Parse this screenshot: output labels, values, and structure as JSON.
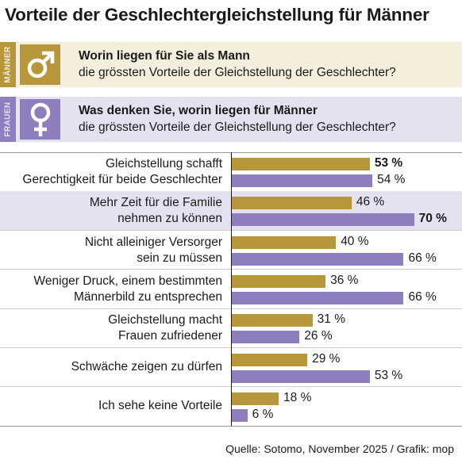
{
  "title": "Vorteile der Geschlechtergleichstellung für Männer",
  "legend": {
    "men": {
      "tag": "MÄNNER",
      "icon": "male-symbol-icon",
      "color": "#b8973a",
      "bg": "#f4efdd",
      "question_bold": "Worin liegen für Sie als Mann",
      "question_rest": "die grössten Vorteile der Gleichstellung der Geschlechter?"
    },
    "women": {
      "tag": "FRAUEN",
      "icon": "female-symbol-icon",
      "color": "#8f7ebd",
      "bg": "#e4e1f0",
      "question_bold": "Was denken Sie, worin liegen für Männer",
      "question_rest": "die grössten Vorteile der Gleichstellung der Geschlechter?"
    }
  },
  "source": "Quelle: Sotomo, November 2025 / Grafik: mop",
  "chart_data": {
    "type": "bar",
    "orientation": "horizontal",
    "title": "Vorteile der Geschlechtergleichstellung für Männer",
    "categories": [
      [
        "Gleichstellung schafft",
        "Gerechtigkeit für beide Geschlechter"
      ],
      [
        "Mehr Zeit für die Familie",
        "nehmen zu können"
      ],
      [
        "Nicht alleiniger Versorger",
        "sein zu müssen"
      ],
      [
        "Weniger Druck, einem bestimmten",
        "Männerbild zu entsprechen"
      ],
      [
        "Gleichstellung macht",
        "Frauen zufriedener"
      ],
      [
        "Schwäche zeigen zu dürfen"
      ],
      [
        "Ich sehe keine Vorteile"
      ]
    ],
    "series": [
      {
        "name": "Männer",
        "color": "#b8973a",
        "values": [
          53,
          46,
          40,
          36,
          31,
          29,
          18
        ],
        "labels": [
          "53 %",
          "46 %",
          "40 %",
          "36 %",
          "31 %",
          "29 %",
          "18 %"
        ],
        "bold": [
          true,
          false,
          false,
          false,
          false,
          false,
          false
        ]
      },
      {
        "name": "Frauen",
        "color": "#8f7ebd",
        "values": [
          54,
          70,
          66,
          66,
          26,
          53,
          6
        ],
        "labels": [
          "54 %",
          "70 %",
          "66 %",
          "66 %",
          "26 %",
          "53 %",
          "6 %"
        ],
        "bold": [
          false,
          true,
          false,
          false,
          false,
          false,
          false
        ]
      }
    ],
    "highlight_row": 1,
    "highlight_color": "#e4e1f0",
    "xlim": [
      0,
      100
    ],
    "grid": false,
    "legend": "top"
  }
}
